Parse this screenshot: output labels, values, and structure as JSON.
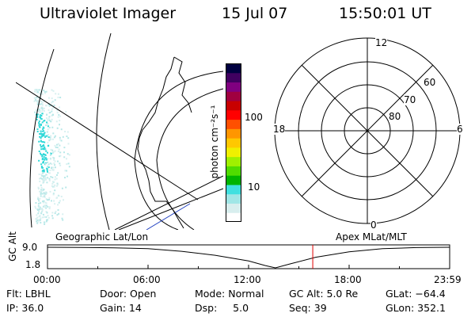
{
  "header": {
    "title": "Ultraviolet Imager",
    "date": "15 Jul 07",
    "time": "15:50:01 UT"
  },
  "colorbar": {
    "unit_label": "photon cm⁻²s⁻¹",
    "ticks": [
      {
        "label": "100",
        "value": 100
      },
      {
        "label": "10",
        "value": 10
      }
    ],
    "colors": [
      "#ffffff",
      "#d8eeee",
      "#a0e6e6",
      "#40e0e0",
      "#00b400",
      "#50dc00",
      "#a0f000",
      "#f0f000",
      "#ffc800",
      "#ff9600",
      "#ff5000",
      "#ff0000",
      "#c80000",
      "#a00040",
      "#800080",
      "#400060",
      "#000040"
    ]
  },
  "geographic_panel": {
    "label": "Geographic Lat/Lon"
  },
  "polar_plot": {
    "label": "Apex MLat/MLT",
    "mlt_labels": [
      {
        "label": "12",
        "pos": "top"
      },
      {
        "label": "18",
        "pos": "left"
      },
      {
        "label": "6",
        "pos": "right"
      },
      {
        "label": "0",
        "pos": "bottom"
      }
    ],
    "mlat_labels": [
      "60",
      "70",
      "80"
    ],
    "mlat_circles": [
      80,
      70,
      60,
      50
    ]
  },
  "chart_data": {
    "type": "line",
    "ylabel": "GC Alt",
    "yticks": [
      "9.0",
      "1.8"
    ],
    "ylim": [
      1.8,
      9.0
    ],
    "xticks": [
      "00:00",
      "06:00",
      "12:00",
      "18:00",
      "23:59"
    ],
    "xlim": [
      0,
      24
    ],
    "series": [
      {
        "x": [
          0,
          2,
          4,
          6,
          8,
          10,
          12,
          13,
          13.6,
          14.5,
          16,
          18,
          20,
          22,
          24
        ],
        "y": [
          9.0,
          8.95,
          8.8,
          8.5,
          7.6,
          6.2,
          4.2,
          2.6,
          1.8,
          3.2,
          5.5,
          7.4,
          8.5,
          8.9,
          9.0
        ]
      }
    ],
    "current_time_marker": 15.83
  },
  "status": {
    "flt": "Flt: LBHL",
    "ip": "IP: 36.0",
    "door": "Door: Open",
    "gain": "Gain: 14",
    "mode": "Mode: Normal",
    "dsp": "Dsp:     5.0",
    "gc_alt": "GC Alt: 5.0 Re",
    "seq": "Seq: 39",
    "glat": "GLat: −64.4",
    "glon": "GLon: 352.1"
  }
}
